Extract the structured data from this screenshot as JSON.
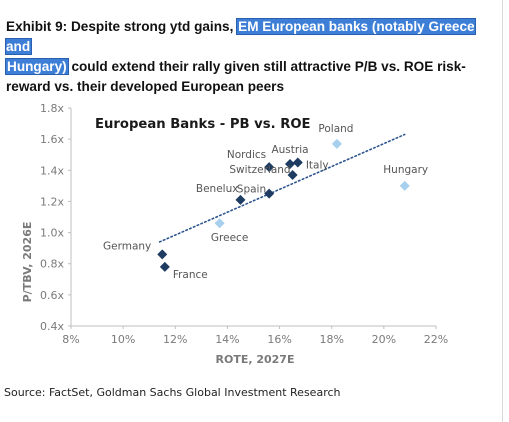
{
  "heading": {
    "part1": "Exhibit 9: Despite strong ytd gains, ",
    "highlight1": "EM European banks (notably Greece and",
    "highlight2": "Hungary)",
    "part2": " could extend their rally given still attractive P/B vs. ROE risk-reward vs. their developed European peers"
  },
  "source": "Source: FactSet, Goldman Sachs Global Investment Research",
  "colors": {
    "dark_marker": "#1e3b62",
    "light_marker": "#a7d0ee",
    "trend": "#2e5590",
    "axis_text": "#7a7a7a",
    "highlight": "#3d7fd6"
  },
  "chart_data": {
    "type": "scatter",
    "title": "European Banks - PB vs. ROE",
    "xlabel": "ROTE, 2027E",
    "ylabel": "P/TBV, 2026E",
    "xlim": [
      0.08,
      0.22
    ],
    "ylim": [
      0.4,
      1.8
    ],
    "xticks": [
      0.08,
      0.1,
      0.12,
      0.14,
      0.16,
      0.18,
      0.2,
      0.22
    ],
    "xtick_labels": [
      "8%",
      "10%",
      "12%",
      "14%",
      "16%",
      "18%",
      "20%",
      "22%"
    ],
    "yticks": [
      0.4,
      0.6,
      0.8,
      1.0,
      1.2,
      1.4,
      1.6,
      1.8
    ],
    "ytick_labels": [
      "0.4x",
      "0.6x",
      "0.8x",
      "1.0x",
      "1.2x",
      "1.4x",
      "1.6x",
      "1.8x"
    ],
    "grid": false,
    "trendline": {
      "x": [
        0.114,
        0.208
      ],
      "y": [
        0.94,
        1.63
      ]
    },
    "points": [
      {
        "label": "Germany",
        "x": 0.115,
        "y": 0.86,
        "group": "developed"
      },
      {
        "label": "France",
        "x": 0.116,
        "y": 0.78,
        "group": "developed"
      },
      {
        "label": "Benelux",
        "x": 0.145,
        "y": 1.21,
        "group": "developed"
      },
      {
        "label": "Spain",
        "x": 0.156,
        "y": 1.25,
        "group": "developed"
      },
      {
        "label": "Nordics",
        "x": 0.156,
        "y": 1.42,
        "group": "developed"
      },
      {
        "label": "Switzerland",
        "x": 0.165,
        "y": 1.37,
        "group": "developed"
      },
      {
        "label": "Austria",
        "x": 0.164,
        "y": 1.44,
        "group": "developed"
      },
      {
        "label": "Italy",
        "x": 0.167,
        "y": 1.45,
        "group": "developed"
      },
      {
        "label": "Greece",
        "x": 0.137,
        "y": 1.06,
        "group": "em"
      },
      {
        "label": "Poland",
        "x": 0.182,
        "y": 1.57,
        "group": "em"
      },
      {
        "label": "Hungary",
        "x": 0.208,
        "y": 1.3,
        "group": "em"
      }
    ]
  }
}
